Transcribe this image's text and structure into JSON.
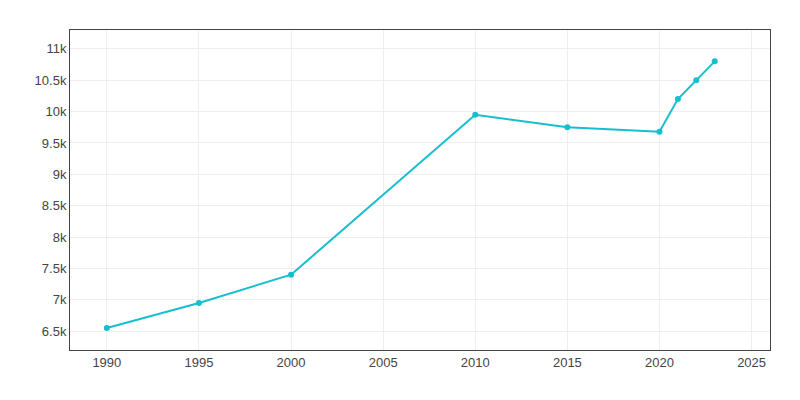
{
  "chart_data": {
    "type": "line",
    "x": [
      1990,
      1995,
      2000,
      2010,
      2015,
      2020,
      2021,
      2022,
      2023
    ],
    "values": [
      6550,
      6950,
      7400,
      9950,
      9750,
      9680,
      10200,
      10500,
      10800
    ],
    "color": "#17becf",
    "marker": "circle",
    "xlim": [
      1988,
      2026
    ],
    "xticks": [
      1990,
      1995,
      2000,
      2005,
      2010,
      2015,
      2020,
      2025
    ],
    "ylim": [
      6200,
      11300
    ],
    "yticks": [
      {
        "value": 6500,
        "label": "6.5k"
      },
      {
        "value": 7000,
        "label": "7k"
      },
      {
        "value": 7500,
        "label": "7.5k"
      },
      {
        "value": 8000,
        "label": "8k"
      },
      {
        "value": 8500,
        "label": "8.5k"
      },
      {
        "value": 9000,
        "label": "9k"
      },
      {
        "value": 9500,
        "label": "9.5k"
      },
      {
        "value": 10000,
        "label": "10k"
      },
      {
        "value": 10500,
        "label": "10.5k"
      },
      {
        "value": 11000,
        "label": "11k"
      }
    ],
    "grid": true
  }
}
